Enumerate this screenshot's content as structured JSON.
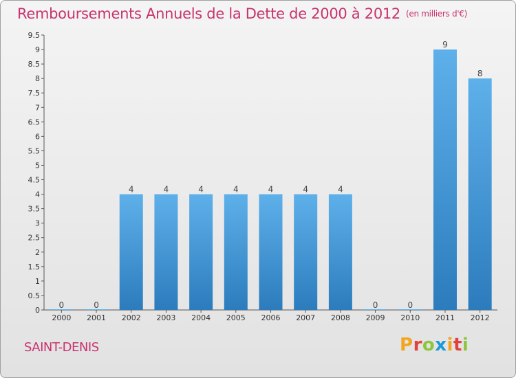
{
  "header": {
    "title": "Remboursements Annuels de la Dette de 2000 à 2012",
    "subtitle": "(en milliers d'€)"
  },
  "footer": {
    "entity": "SAINT-DENIS",
    "brand": "Proxiti"
  },
  "colors": {
    "accent": "#c8336e",
    "bar_top": "#5eb0ea",
    "bar_bottom": "#2c7cbd",
    "brand_letters": [
      "#f2a51f",
      "#e0433d",
      "#8cc63f",
      "#1a9ad6",
      "#f2a51f",
      "#e0433d",
      "#8cc63f"
    ]
  },
  "chart_data": {
    "type": "bar",
    "categories": [
      "2000",
      "2001",
      "2002",
      "2003",
      "2004",
      "2005",
      "2006",
      "2007",
      "2008",
      "2009",
      "2010",
      "2011",
      "2012"
    ],
    "values": [
      0,
      0,
      4,
      4,
      4,
      4,
      4,
      4,
      4,
      0,
      0,
      9,
      8
    ],
    "value_labels": [
      "0",
      "0",
      "4",
      "4",
      "4",
      "4",
      "4",
      "4",
      "4",
      "0",
      "0",
      "9",
      "8"
    ],
    "ylim": [
      0,
      9.5
    ],
    "y_ticks": [
      "0",
      "0.5",
      "1",
      "1.5",
      "2",
      "2.5",
      "3",
      "3.5",
      "4",
      "4.5",
      "5",
      "5.5",
      "6",
      "6.5",
      "7",
      "7.5",
      "8",
      "8.5",
      "9",
      "9.5"
    ],
    "xlabel": "",
    "ylabel": "",
    "grid": false,
    "legend": "none"
  }
}
